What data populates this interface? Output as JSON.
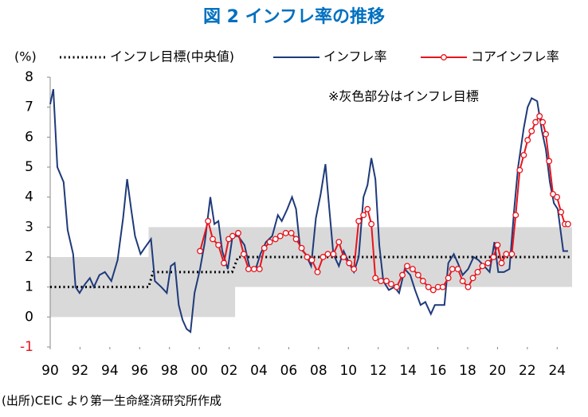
{
  "chart_data": {
    "type": "line",
    "title": "図 2 インフレ率の推移",
    "y_unit": "(%)",
    "annotation": "※灰色部分はインフレ目標",
    "source": "(出所)CEIC より第一生命経済研究所作成",
    "xlim": [
      1990,
      2025
    ],
    "ylim": [
      -1,
      8
    ],
    "xticks": [
      {
        "value": 1990,
        "label": "90"
      },
      {
        "value": 1992,
        "label": "92"
      },
      {
        "value": 1994,
        "label": "94"
      },
      {
        "value": 1996,
        "label": "96"
      },
      {
        "value": 1998,
        "label": "98"
      },
      {
        "value": 2000,
        "label": "00"
      },
      {
        "value": 2002,
        "label": "02"
      },
      {
        "value": 2004,
        "label": "04"
      },
      {
        "value": 2006,
        "label": "06"
      },
      {
        "value": 2008,
        "label": "08"
      },
      {
        "value": 2010,
        "label": "10"
      },
      {
        "value": 2012,
        "label": "12"
      },
      {
        "value": 2014,
        "label": "14"
      },
      {
        "value": 2016,
        "label": "16"
      },
      {
        "value": 2018,
        "label": "18"
      },
      {
        "value": 2020,
        "label": "20"
      },
      {
        "value": 2022,
        "label": "22"
      },
      {
        "value": 2024,
        "label": "24"
      }
    ],
    "yticks": [
      -1,
      0,
      1,
      2,
      3,
      4,
      5,
      6,
      7,
      8
    ],
    "target_band": {
      "color": "#d9d9d9",
      "x": [
        1990,
        1996.6,
        1996.6,
        2002.4,
        2002.4,
        2025
      ],
      "low": [
        0,
        0,
        0,
        0,
        1,
        1
      ],
      "high": [
        2,
        2,
        3,
        3,
        3,
        3
      ]
    },
    "series": [
      {
        "name": "インフレ目標(中央値)",
        "color": "#000000",
        "style": "dotted",
        "x": [
          1990,
          1996.6,
          1996.9,
          2002.2,
          2002.6,
          2025
        ],
        "values": [
          1,
          1,
          1.5,
          1.5,
          2,
          2
        ]
      },
      {
        "name": "インフレ率",
        "color": "#1f3a7a",
        "style": "solid",
        "x": [
          1990.0,
          1990.21,
          1990.48,
          1990.9,
          1991.17,
          1991.54,
          1991.7,
          1991.97,
          1992.34,
          1992.66,
          1992.93,
          1993.3,
          1993.67,
          1994.1,
          1994.52,
          1994.89,
          1995.16,
          1995.43,
          1995.69,
          1996.06,
          1996.33,
          1996.76,
          1997.02,
          1997.45,
          1997.82,
          1998.09,
          1998.35,
          1998.62,
          1998.88,
          1999.15,
          1999.41,
          1999.68,
          2000.05,
          2000.37,
          2000.74,
          2001.01,
          2001.28,
          2001.54,
          2001.91,
          2002.23,
          2002.61,
          2003.03,
          2003.4,
          2003.78,
          2004.1,
          2004.47,
          2004.89,
          2005.27,
          2005.53,
          2005.9,
          2006.22,
          2006.49,
          2006.76,
          2007.13,
          2007.5,
          2007.82,
          2008.14,
          2008.46,
          2008.72,
          2008.99,
          2009.36,
          2009.68,
          2010.05,
          2010.37,
          2010.69,
          2011.01,
          2011.28,
          2011.54,
          2011.81,
          2012.07,
          2012.34,
          2012.71,
          2013.09,
          2013.4,
          2013.78,
          2014.15,
          2014.47,
          2014.84,
          2015.16,
          2015.53,
          2015.8,
          2016.17,
          2016.44,
          2016.7,
          2017.07,
          2017.34,
          2017.66,
          2018.03,
          2018.4,
          2018.72,
          2019.1,
          2019.47,
          2019.79,
          2020.05,
          2020.43,
          2020.8,
          2021.12,
          2021.38,
          2021.76,
          2022.02,
          2022.29,
          2022.66,
          2022.98,
          2023.24,
          2023.51,
          2023.78,
          2024.04,
          2024.41,
          2024.73
        ],
        "values": [
          7.1,
          7.6,
          5.0,
          4.5,
          2.9,
          2.1,
          1.0,
          0.8,
          1.1,
          1.3,
          1.0,
          1.4,
          1.5,
          1.2,
          1.9,
          3.3,
          4.6,
          3.6,
          2.7,
          2.1,
          2.3,
          2.6,
          1.2,
          1.0,
          0.8,
          1.7,
          1.8,
          0.4,
          -0.1,
          -0.4,
          -0.5,
          0.8,
          1.6,
          2.5,
          4.0,
          3.1,
          3.2,
          2.2,
          1.6,
          2.7,
          2.7,
          2.4,
          1.6,
          1.6,
          2.1,
          2.5,
          2.7,
          3.4,
          3.2,
          3.6,
          4.0,
          3.6,
          2.3,
          2.1,
          1.7,
          3.3,
          4.1,
          5.1,
          3.6,
          2.1,
          1.7,
          2.2,
          1.8,
          1.5,
          2.0,
          4.0,
          4.4,
          5.3,
          4.6,
          2.4,
          1.2,
          0.9,
          1.0,
          0.8,
          1.6,
          1.4,
          0.9,
          0.4,
          0.5,
          0.1,
          0.4,
          0.4,
          0.4,
          1.8,
          2.1,
          1.8,
          1.4,
          1.6,
          2.0,
          1.9,
          1.7,
          1.5,
          2.5,
          1.5,
          1.5,
          1.6,
          3.6,
          5.0,
          6.3,
          7.0,
          7.3,
          7.2,
          6.2,
          5.6,
          4.5,
          3.8,
          3.6,
          2.2,
          2.2
        ]
      },
      {
        "name": "コアインフレ率",
        "color": "#e8141c",
        "style": "markers",
        "x": [
          2000.05,
          2000.59,
          2000.9,
          2001.28,
          2001.65,
          2001.97,
          2002.23,
          2002.61,
          2002.98,
          2003.3,
          2003.67,
          2004.04,
          2004.36,
          2004.73,
          2005.11,
          2005.43,
          2005.8,
          2006.17,
          2006.49,
          2006.86,
          2007.23,
          2007.55,
          2007.93,
          2008.3,
          2008.62,
          2008.99,
          2009.36,
          2009.68,
          2010.05,
          2010.37,
          2010.69,
          2011.01,
          2011.28,
          2011.54,
          2011.81,
          2012.18,
          2012.55,
          2012.87,
          2013.24,
          2013.62,
          2013.94,
          2014.31,
          2014.68,
          2015.0,
          2015.37,
          2015.69,
          2016.01,
          2016.33,
          2016.7,
          2016.97,
          2017.34,
          2017.66,
          2018.03,
          2018.35,
          2018.67,
          2018.99,
          2019.36,
          2019.73,
          2020.0,
          2020.27,
          2020.59,
          2020.96,
          2021.22,
          2021.49,
          2021.76,
          2022.02,
          2022.29,
          2022.55,
          2022.82,
          2023.03,
          2023.24,
          2023.46,
          2023.72,
          2023.99,
          2024.26,
          2024.52,
          2024.73
        ],
        "values": [
          2.2,
          3.2,
          2.6,
          2.4,
          1.8,
          2.6,
          2.7,
          2.8,
          2.1,
          1.6,
          1.6,
          1.6,
          2.3,
          2.5,
          2.6,
          2.7,
          2.8,
          2.8,
          2.6,
          2.3,
          2.0,
          1.9,
          1.5,
          2.0,
          2.1,
          2.1,
          2.5,
          2.0,
          1.8,
          1.6,
          3.2,
          3.4,
          3.6,
          3.1,
          1.3,
          1.2,
          1.2,
          1.1,
          1.0,
          1.4,
          1.7,
          1.6,
          1.4,
          1.2,
          1.0,
          0.9,
          1.0,
          1.0,
          1.3,
          1.6,
          1.6,
          1.2,
          1.0,
          1.3,
          1.5,
          1.7,
          1.8,
          2.0,
          2.4,
          1.8,
          2.1,
          2.1,
          3.4,
          4.9,
          5.4,
          5.9,
          6.2,
          6.5,
          6.7,
          6.5,
          6.1,
          5.2,
          4.1,
          4.0,
          3.5,
          3.1,
          3.1
        ]
      }
    ]
  }
}
